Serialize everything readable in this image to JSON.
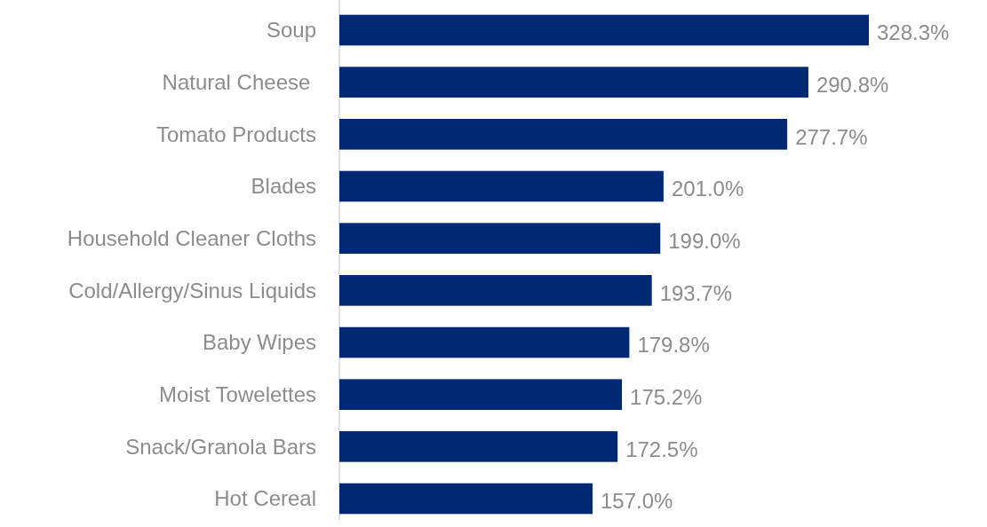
{
  "chart_data": {
    "type": "bar",
    "orientation": "horizontal",
    "categories": [
      "Soup",
      "Natural Cheese ",
      "Tomato Products",
      "Blades",
      "Household Cleaner Cloths",
      "Cold/Allergy/Sinus Liquids",
      "Baby Wipes",
      "Moist Towelettes",
      "Snack/Granola Bars",
      "Hot Cereal"
    ],
    "values": [
      328.3,
      290.8,
      277.7,
      201.0,
      199.0,
      193.7,
      179.8,
      175.2,
      172.5,
      157.0
    ],
    "value_labels": [
      "328.3%",
      "290.8%",
      "277.7%",
      "201.0%",
      "199.0%",
      "193.7%",
      "179.8%",
      "175.2%",
      "172.5%",
      "157.0%"
    ],
    "color": "#002873"
  }
}
